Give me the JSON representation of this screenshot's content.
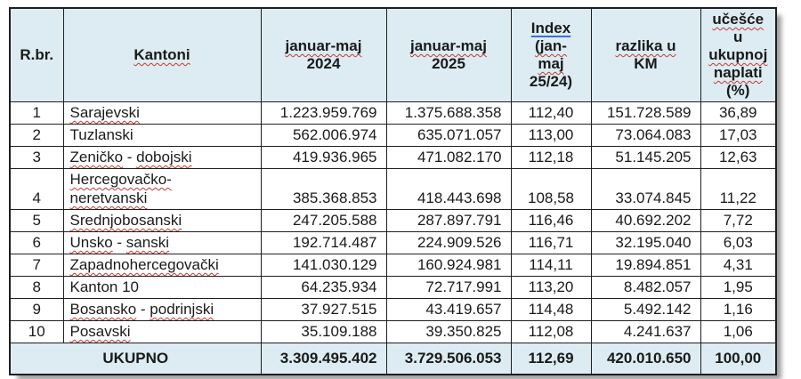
{
  "colors": {
    "header_bg": "#dcecf2",
    "border": "#1f1f1f",
    "text": "#1a1a1a",
    "spellcheck_red": "#c43a31",
    "grammar_blue": "#3b6fd4"
  },
  "table": {
    "header": [
      {
        "lines": [
          [
            {
              "t": "R.br."
            }
          ]
        ]
      },
      {
        "lines": [
          [
            {
              "t": "Kantoni",
              "d": "rw"
            }
          ]
        ]
      },
      {
        "lines": [
          [
            {
              "t": "januar-maj",
              "d": "rw"
            }
          ],
          [
            {
              "t": "2024"
            }
          ]
        ]
      },
      {
        "lines": [
          [
            {
              "t": "januar-maj",
              "d": "rw"
            }
          ],
          [
            {
              "t": "2025"
            }
          ]
        ]
      },
      {
        "lines": [
          [
            {
              "t": "Index",
              "d": "bu"
            }
          ],
          [
            {
              "t": "(jan-",
              "d": "rw"
            }
          ],
          [
            {
              "t": "maj",
              "d": "rw"
            }
          ],
          [
            {
              "t": "25/24)"
            }
          ]
        ]
      },
      {
        "lines": [
          [
            {
              "t": "razlika u",
              "d": "rw"
            }
          ],
          [
            {
              "t": "KM"
            }
          ]
        ]
      },
      {
        "lines": [
          [
            {
              "t": "učešće",
              "d": "rw"
            }
          ],
          [
            {
              "t": "u"
            }
          ],
          [
            {
              "t": "ukupnoj",
              "d": "rw"
            }
          ],
          [
            {
              "t": "naplati",
              "d": "rw"
            }
          ],
          [
            {
              "t": "(%)"
            }
          ]
        ]
      }
    ],
    "rows": [
      {
        "rbr": "1",
        "name": [
          [
            {
              "t": "Sarajevski",
              "d": "rw"
            }
          ]
        ],
        "v2024": "1.223.959.769",
        "v2025": "1.375.688.358",
        "index": "112,40",
        "razlika": "151.728.589",
        "udio": "36,89"
      },
      {
        "rbr": "2",
        "name": [
          [
            {
              "t": "Tuzlanski"
            }
          ]
        ],
        "v2024": "562.006.974",
        "v2025": "635.071.057",
        "index": "113,00",
        "razlika": "73.064.083",
        "udio": "17,03"
      },
      {
        "rbr": "3",
        "name": [
          [
            {
              "t": "Zeničko",
              "d": "rw"
            },
            {
              "t": " - "
            },
            {
              "t": "dobojski",
              "d": "rw"
            }
          ]
        ],
        "v2024": "419.936.965",
        "v2025": "471.082.170",
        "index": "112,18",
        "razlika": "51.145.205",
        "udio": "12,63"
      },
      {
        "rbr": "4",
        "name": [
          [
            {
              "t": "Hercegovačko-",
              "d": "rw"
            }
          ],
          [
            {
              "t": "neretvanski",
              "d": "rw"
            }
          ]
        ],
        "v2024": "385.368.853",
        "v2025": "418.443.698",
        "index": "108,58",
        "razlika": "33.074.845",
        "udio": "11,22"
      },
      {
        "rbr": "5",
        "name": [
          [
            {
              "t": "Srednjobosanski",
              "d": "rw"
            }
          ]
        ],
        "v2024": "247.205.588",
        "v2025": "287.897.791",
        "index": "116,46",
        "razlika": "40.692.202",
        "udio": "7,72"
      },
      {
        "rbr": "6",
        "name": [
          [
            {
              "t": "Unsko",
              "d": "rw"
            },
            {
              "t": " - "
            },
            {
              "t": "sanski",
              "d": "rw"
            }
          ]
        ],
        "v2024": "192.714.487",
        "v2025": "224.909.526",
        "index": "116,71",
        "razlika": "32.195.040",
        "udio": "6,03"
      },
      {
        "rbr": "7",
        "name": [
          [
            {
              "t": "Zapadnohercegovački",
              "d": "rw"
            }
          ]
        ],
        "v2024": "141.030.129",
        "v2025": "160.924.981",
        "index": "114,11",
        "razlika": "19.894.851",
        "udio": "4,31"
      },
      {
        "rbr": "8",
        "name": [
          [
            {
              "t": "Kanton 10"
            }
          ]
        ],
        "v2024": "64.235.934",
        "v2025": "72.717.991",
        "index": "113,20",
        "razlika": "8.482.057",
        "udio": "1,95"
      },
      {
        "rbr": "9",
        "name": [
          [
            {
              "t": "Bosansko",
              "d": "rw"
            },
            {
              "t": " - "
            },
            {
              "t": "podrinjski",
              "d": "rw"
            }
          ]
        ],
        "v2024": "37.927.515",
        "v2025": "43.419.657",
        "index": "114,48",
        "razlika": "5.492.142",
        "udio": "1,16"
      },
      {
        "rbr": "10",
        "name": [
          [
            {
              "t": "Posavski",
              "d": "rw"
            }
          ]
        ],
        "v2024": "35.109.188",
        "v2025": "39.350.825",
        "index": "112,08",
        "razlika": "4.241.637",
        "udio": "1,06"
      }
    ],
    "footer": {
      "label": "UKUPNO",
      "v2024": "3.309.495.402",
      "v2025": "3.729.506.053",
      "index": "112,69",
      "razlika": "420.010.650",
      "udio": "100,00"
    }
  }
}
